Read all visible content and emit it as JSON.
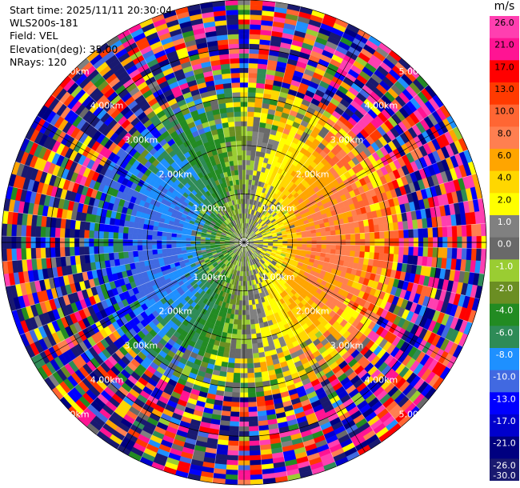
{
  "header": {
    "start_time_line": "Start time: 2025/11/11 20:30:04",
    "site_line": "WLS200s-181",
    "field_line": "Field: VEL",
    "elevation_line": "Elevation(deg): 35.00",
    "nrays_line": "NRays: 120"
  },
  "colorbar": {
    "unit": "m/s",
    "levels": [
      {
        "label": "26.0",
        "color": "#ff3fb0"
      },
      {
        "label": "21.0",
        "color": "#ff1493"
      },
      {
        "label": "17.0",
        "color": "#ff0000"
      },
      {
        "label": "13.0",
        "color": "#ff3a00"
      },
      {
        "label": "10.0",
        "color": "#ff6633"
      },
      {
        "label": "8.0",
        "color": "#ff7f50"
      },
      {
        "label": "6.0",
        "color": "#ffa500"
      },
      {
        "label": "4.0",
        "color": "#ffd700"
      },
      {
        "label": "2.0",
        "color": "#ffff00"
      },
      {
        "label": "1.0",
        "color": "#808080"
      },
      {
        "label": "0.0",
        "color": "#696969"
      },
      {
        "label": "-1.0",
        "color": "#9acd32"
      },
      {
        "label": "-2.0",
        "color": "#6b8e23"
      },
      {
        "label": "-4.0",
        "color": "#228b22"
      },
      {
        "label": "-6.0",
        "color": "#2e8b57"
      },
      {
        "label": "-8.0",
        "color": "#1e90ff"
      },
      {
        "label": "-10.0",
        "color": "#4169e1"
      },
      {
        "label": "-13.0",
        "color": "#0000ff"
      },
      {
        "label": "-17.0",
        "color": "#0000cd"
      },
      {
        "label": "-21.0",
        "color": "#000080"
      },
      {
        "label": "-26.0",
        "color": "#191970"
      }
    ],
    "bottom_label": "-30.0"
  },
  "chart_data": {
    "type": "ppi",
    "field": "VEL",
    "units": "m/s",
    "elevation_deg": 35.0,
    "nrays": 120,
    "range_rings_km": [
      1.0,
      2.0,
      3.0,
      4.0,
      5.0
    ],
    "ring_labels": [
      "1.00km",
      "2.00km",
      "3.00km",
      "4.00km",
      "5.00km"
    ],
    "max_range_km": 5.0,
    "wind_pattern_note": "positive (pink/red) velocities to the east, negative (green/blue) to the west"
  }
}
